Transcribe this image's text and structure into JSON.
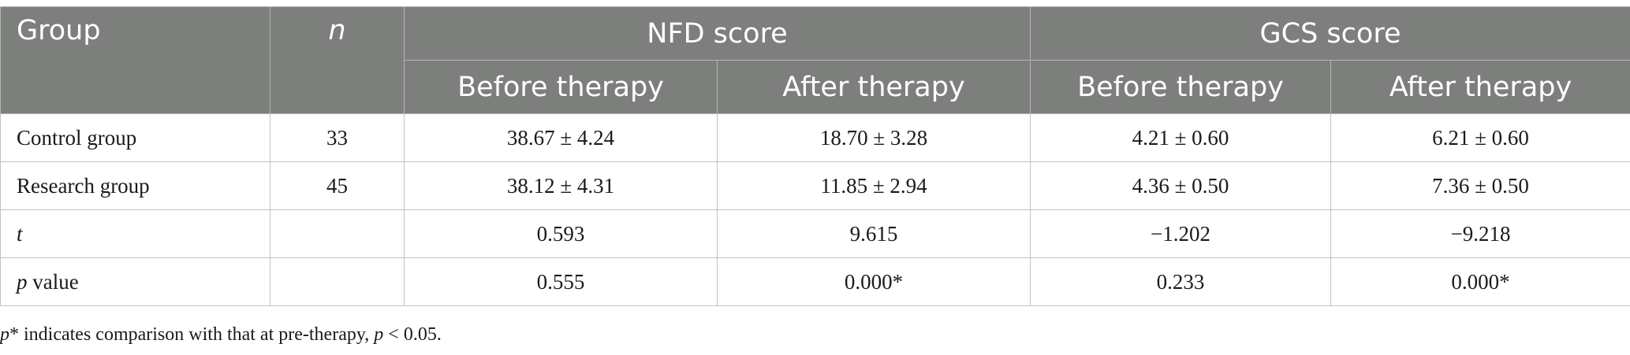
{
  "table": {
    "header": {
      "group": "Group",
      "n": "n",
      "nfd": "NFD score",
      "gcs": "GCS score",
      "before": "Before therapy",
      "after": "After therapy"
    },
    "rows": [
      {
        "label": "Control group",
        "n": "33",
        "nfd_before": "38.67 ± 4.24",
        "nfd_after": "18.70 ± 3.28",
        "gcs_before": "4.21 ± 0.60",
        "gcs_after": "6.21 ± 0.60"
      },
      {
        "label": "Research group",
        "n": "45",
        "nfd_before": "38.12 ± 4.31",
        "nfd_after": "11.85 ± 2.94",
        "gcs_before": "4.36 ± 0.50",
        "gcs_after": "7.36 ± 0.50"
      },
      {
        "label": "t",
        "n": "",
        "nfd_before": "0.593",
        "nfd_after": "9.615",
        "gcs_before": "−1.202",
        "gcs_after": "−9.218"
      },
      {
        "label_italic": "p",
        "label_rest": " value",
        "n": "",
        "nfd_before": "0.555",
        "nfd_after": "0.000*",
        "gcs_before": "0.233",
        "gcs_after": "0.000*"
      }
    ]
  },
  "footnote": {
    "p_symbol": "p",
    "text_a": "* indicates comparison with that at pre-therapy, ",
    "p_symbol2": "p",
    "text_b": " < 0.05."
  }
}
